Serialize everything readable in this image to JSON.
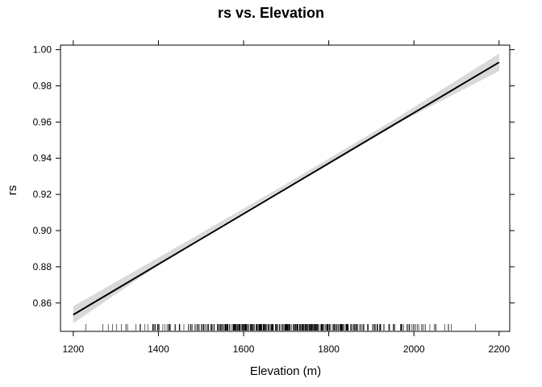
{
  "chart_data": {
    "type": "line",
    "title": "rs vs. Elevation",
    "xlabel": "Elevation (m)",
    "ylabel": "rs",
    "xlim": [
      1170,
      2225
    ],
    "ylim": [
      0.8443,
      1.0025
    ],
    "x_ticks": [
      1200,
      1400,
      1600,
      1800,
      2000,
      2200
    ],
    "x_tick_labels": [
      "1200",
      "1400",
      "1600",
      "1800",
      "2000",
      "2200"
    ],
    "y_ticks": [
      0.86,
      0.88,
      0.9,
      0.92,
      0.94,
      0.96,
      0.98,
      1.0
    ],
    "y_tick_labels": [
      "0.86",
      "0.88",
      "0.90",
      "0.92",
      "0.94",
      "0.96",
      "0.98",
      "1.00"
    ],
    "grid": false,
    "fit_line": {
      "x": [
        1200,
        2200
      ],
      "y": [
        0.8535,
        0.993
      ]
    },
    "confidence_band": {
      "x": [
        1200,
        1450,
        1700,
        1950,
        2200
      ],
      "lower": [
        0.8488,
        0.8889,
        0.9242,
        0.9578,
        0.9882
      ],
      "upper": [
        0.8582,
        0.8918,
        0.9258,
        0.9608,
        0.9978
      ]
    },
    "rug": {
      "range": [
        1200,
        2195
      ]
    },
    "colors": {
      "line": "#000000",
      "band": "#d9d9d9",
      "rug": "#000000"
    }
  }
}
